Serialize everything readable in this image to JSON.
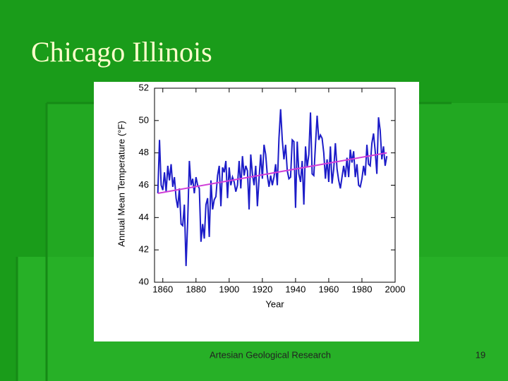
{
  "slide": {
    "title": "Chicago Illinois",
    "footer": "Artesian Geological Research",
    "page_number": "19"
  },
  "chart_data": {
    "type": "line",
    "x_label": "Year",
    "y_label": "Annual Mean Temperature (°F)",
    "xlim": [
      1855,
      2000
    ],
    "xticks": [
      1860,
      1880,
      1900,
      1920,
      1940,
      1960,
      1980,
      2000
    ],
    "ylim": [
      40,
      52
    ],
    "yticks": [
      40,
      42,
      44,
      46,
      48,
      50,
      52
    ],
    "x": [
      1857,
      1858,
      1859,
      1860,
      1861,
      1862,
      1863,
      1864,
      1865,
      1866,
      1867,
      1868,
      1869,
      1870,
      1871,
      1872,
      1873,
      1874,
      1875,
      1876,
      1877,
      1878,
      1879,
      1880,
      1881,
      1882,
      1883,
      1884,
      1885,
      1886,
      1887,
      1888,
      1889,
      1890,
      1891,
      1892,
      1893,
      1894,
      1895,
      1896,
      1897,
      1898,
      1899,
      1900,
      1901,
      1902,
      1903,
      1904,
      1905,
      1906,
      1907,
      1908,
      1909,
      1910,
      1911,
      1912,
      1913,
      1914,
      1915,
      1916,
      1917,
      1918,
      1919,
      1920,
      1921,
      1922,
      1923,
      1924,
      1925,
      1926,
      1927,
      1928,
      1929,
      1930,
      1931,
      1932,
      1933,
      1934,
      1935,
      1936,
      1937,
      1938,
      1939,
      1940,
      1941,
      1942,
      1943,
      1944,
      1945,
      1946,
      1947,
      1948,
      1949,
      1950,
      1951,
      1952,
      1953,
      1954,
      1955,
      1956,
      1957,
      1958,
      1959,
      1960,
      1961,
      1962,
      1963,
      1964,
      1965,
      1966,
      1967,
      1968,
      1969,
      1970,
      1971,
      1972,
      1973,
      1974,
      1975,
      1976,
      1977,
      1978,
      1979,
      1980,
      1981,
      1982,
      1983,
      1984,
      1985,
      1986,
      1987,
      1988,
      1989,
      1990,
      1991,
      1992,
      1993,
      1994,
      1995
    ],
    "series": [
      {
        "color": "#1c1cc8",
        "values": [
          45.5,
          48.8,
          46.0,
          45.7,
          46.8,
          45.6,
          47.2,
          46.3,
          47.3,
          45.9,
          46.5,
          45.2,
          44.6,
          45.8,
          43.6,
          43.5,
          44.8,
          41.0,
          43.8,
          47.5,
          46.0,
          46.4,
          45.5,
          46.5,
          46.0,
          45.8,
          42.5,
          43.6,
          42.7,
          44.8,
          45.2,
          42.8,
          46.3,
          44.5,
          45.1,
          45.3,
          46.6,
          47.2,
          44.7,
          47.1,
          46.8,
          47.5,
          45.2,
          47.1,
          46.0,
          46.5,
          46.2,
          45.6,
          46.0,
          47.5,
          45.8,
          47.8,
          46.6,
          47.2,
          46.9,
          44.5,
          47.9,
          46.7,
          46.0,
          47.2,
          44.7,
          46.4,
          47.9,
          46.4,
          48.5,
          47.9,
          46.6,
          45.9,
          46.6,
          46.0,
          46.5,
          47.3,
          46.0,
          48.9,
          50.7,
          48.8,
          47.6,
          48.5,
          46.9,
          46.4,
          46.5,
          48.8,
          48.7,
          44.6,
          48.7,
          46.7,
          46.2,
          47.5,
          44.8,
          48.4,
          47.1,
          47.9,
          50.5,
          46.7,
          46.6,
          48.5,
          50.3,
          48.8,
          49.1,
          48.9,
          48.0,
          46.4,
          47.6,
          46.2,
          48.4,
          46.1,
          47.0,
          48.6,
          47.0,
          46.3,
          45.8,
          46.5,
          47.2,
          46.5,
          47.7,
          46.5,
          48.2,
          47.4,
          48.1,
          46.5,
          47.3,
          46.0,
          45.9,
          46.4,
          47.2,
          46.6,
          48.5,
          47.3,
          47.2,
          48.6,
          49.2,
          48.1,
          46.7,
          50.2,
          49.4,
          47.6,
          48.4,
          47.2,
          47.8
        ]
      }
    ],
    "trend": {
      "color": "#d040d8",
      "x": [
        1857,
        1995
      ],
      "values": [
        45.5,
        48.0
      ]
    }
  }
}
